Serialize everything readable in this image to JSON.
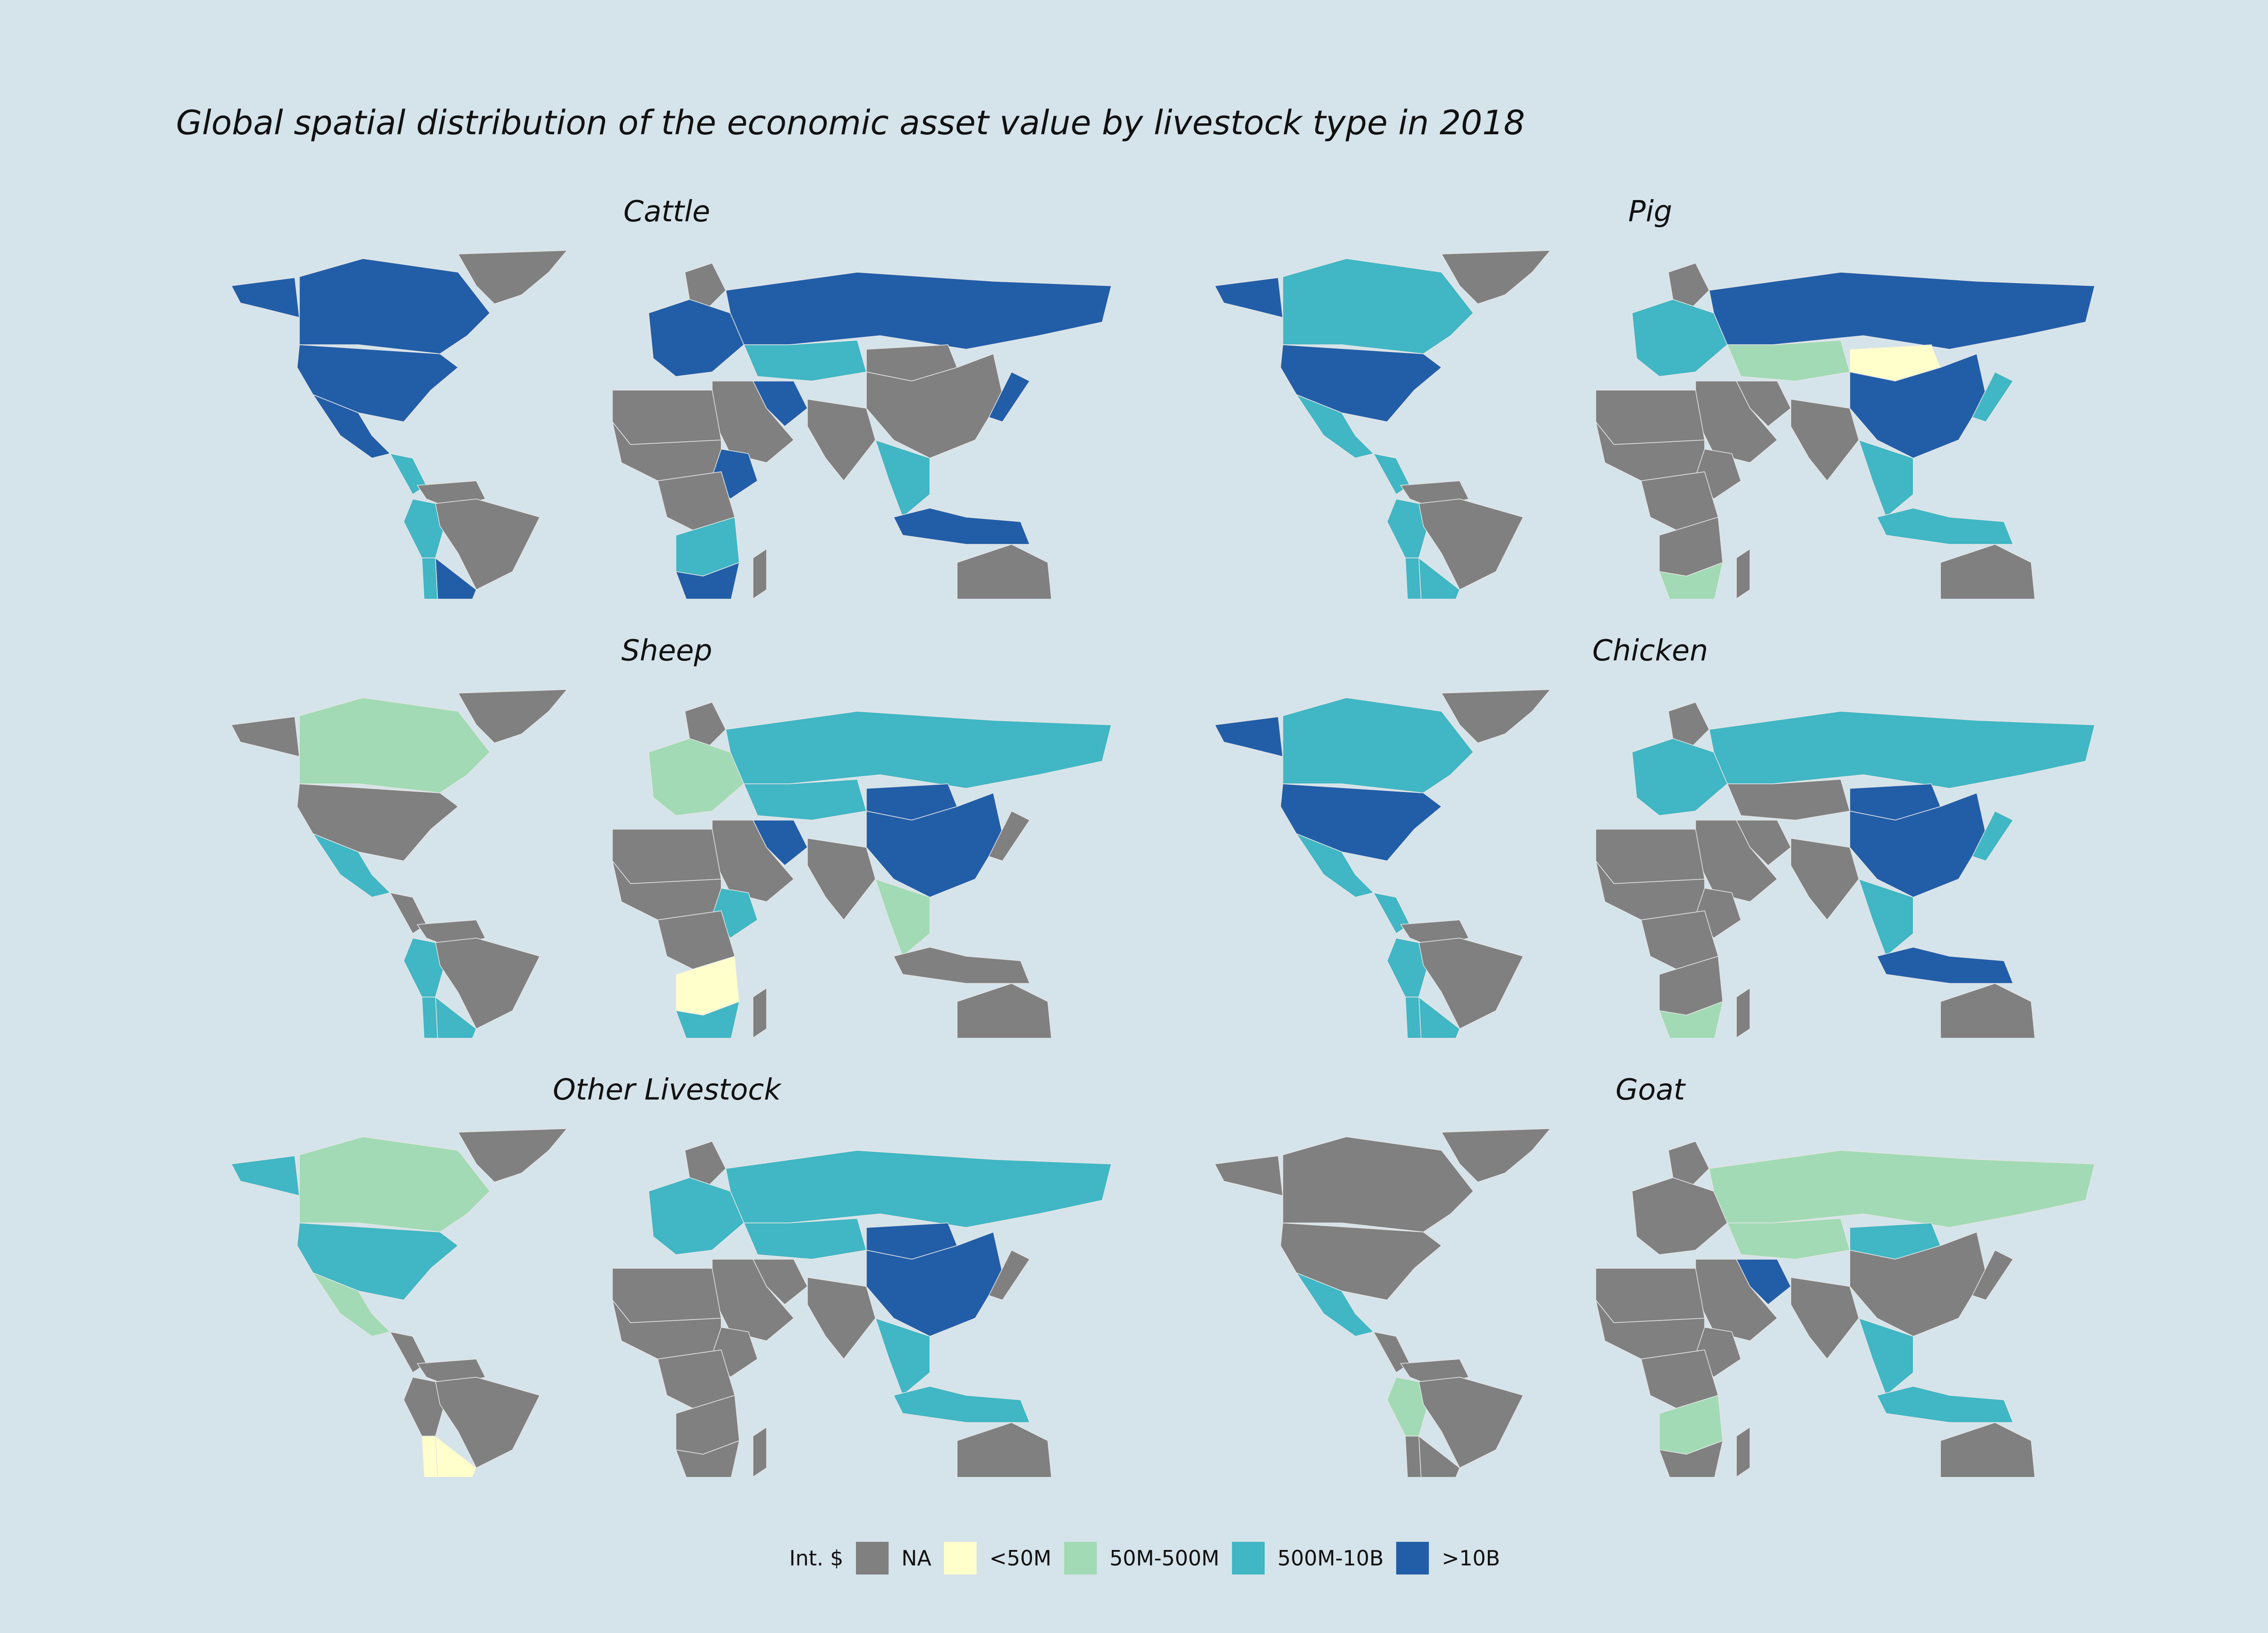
{
  "title": "Global spatial distribution of the economic asset value by livestock type in 2018",
  "legend": {
    "title": "Int. $",
    "items": [
      {
        "label": "NA",
        "color": "#808080"
      },
      {
        "label": "<50M",
        "color": "#ffffcc"
      },
      {
        "label": "50M-500M",
        "color": "#a1dab4"
      },
      {
        "label": "500M-10B",
        "color": "#41b6c4"
      },
      {
        "label": ">10B",
        "color": "#225ea8"
      }
    ]
  },
  "panels": [
    {
      "title": "Cattle",
      "regions": {
        "greenland": "NA",
        "alaska": ">10B",
        "canada": ">10B",
        "usa": ">10B",
        "mexico": ">10B",
        "central_america": "500M-10B",
        "south_america_north": "NA",
        "peru": "500M-10B",
        "brazil": "NA",
        "argentina": ">10B",
        "chile": "500M-10B",
        "europe": ">10B",
        "scandinavia": "NA",
        "russia": ">10B",
        "kazakhstan": "500M-10B",
        "north_africa": "NA",
        "sahel": "NA",
        "central_africa": "NA",
        "ethiopia": ">10B",
        "southern_africa": "500M-10B",
        "south_africa": ">10B",
        "madagascar": "NA",
        "middle_east": "NA",
        "iran": ">10B",
        "india": "NA",
        "china": "NA",
        "mongolia": "NA",
        "se_asia": "500M-10B",
        "indonesia": ">10B",
        "japan": ">10B",
        "australia": "NA",
        "new_zealand": "500M-10B"
      }
    },
    {
      "title": "Pig",
      "regions": {
        "greenland": "NA",
        "alaska": ">10B",
        "canada": "500M-10B",
        "usa": ">10B",
        "mexico": "500M-10B",
        "central_america": "500M-10B",
        "south_america_north": "NA",
        "peru": "500M-10B",
        "brazil": "NA",
        "argentina": "500M-10B",
        "chile": "500M-10B",
        "europe": "500M-10B",
        "scandinavia": "NA",
        "russia": ">10B",
        "kazakhstan": "50M-500M",
        "north_africa": "NA",
        "sahel": "NA",
        "central_africa": "NA",
        "ethiopia": "NA",
        "southern_africa": "NA",
        "south_africa": "50M-500M",
        "madagascar": "NA",
        "middle_east": "NA",
        "iran": "NA",
        "india": "NA",
        "china": ">10B",
        "mongolia": "<50M",
        "se_asia": "500M-10B",
        "indonesia": "500M-10B",
        "japan": "500M-10B",
        "australia": "NA",
        "new_zealand": "50M-500M"
      }
    },
    {
      "title": "Sheep",
      "regions": {
        "greenland": "NA",
        "alaska": "NA",
        "canada": "50M-500M",
        "usa": "NA",
        "mexico": "500M-10B",
        "central_america": "NA",
        "south_america_north": "NA",
        "peru": "500M-10B",
        "brazil": "NA",
        "argentina": "500M-10B",
        "chile": "500M-10B",
        "europe": "50M-500M",
        "scandinavia": "NA",
        "russia": "500M-10B",
        "kazakhstan": "500M-10B",
        "north_africa": "NA",
        "sahel": "NA",
        "central_africa": "NA",
        "ethiopia": "500M-10B",
        "southern_africa": "<50M",
        "south_africa": "500M-10B",
        "madagascar": "NA",
        "middle_east": "NA",
        "iran": ">10B",
        "india": "NA",
        "china": ">10B",
        "mongolia": ">10B",
        "se_asia": "50M-500M",
        "indonesia": "NA",
        "japan": "NA",
        "australia": "NA",
        "new_zealand": "500M-10B"
      }
    },
    {
      "title": "Chicken",
      "regions": {
        "greenland": "NA",
        "alaska": ">10B",
        "canada": "500M-10B",
        "usa": ">10B",
        "mexico": "500M-10B",
        "central_america": "500M-10B",
        "south_america_north": "NA",
        "peru": "500M-10B",
        "brazil": "NA",
        "argentina": "500M-10B",
        "chile": "500M-10B",
        "europe": "500M-10B",
        "scandinavia": "NA",
        "russia": "500M-10B",
        "kazakhstan": "NA",
        "north_africa": "NA",
        "sahel": "NA",
        "central_africa": "NA",
        "ethiopia": "NA",
        "southern_africa": "NA",
        "south_africa": "50M-500M",
        "madagascar": "NA",
        "middle_east": "NA",
        "iran": "NA",
        "india": "NA",
        "china": ">10B",
        "mongolia": ">10B",
        "se_asia": "500M-10B",
        "indonesia": ">10B",
        "japan": "500M-10B",
        "australia": "NA",
        "new_zealand": "50M-500M"
      }
    },
    {
      "title": "Other Livestock",
      "regions": {
        "greenland": "NA",
        "alaska": "500M-10B",
        "canada": "50M-500M",
        "usa": "500M-10B",
        "mexico": "50M-500M",
        "central_america": "NA",
        "south_america_north": "NA",
        "peru": "NA",
        "brazil": "NA",
        "argentina": "<50M",
        "chile": "<50M",
        "europe": "500M-10B",
        "scandinavia": "NA",
        "russia": "500M-10B",
        "kazakhstan": "500M-10B",
        "north_africa": "NA",
        "sahel": "NA",
        "central_africa": "NA",
        "ethiopia": "NA",
        "southern_africa": "NA",
        "south_africa": "NA",
        "madagascar": "NA",
        "middle_east": "NA",
        "iran": "NA",
        "india": "NA",
        "china": ">10B",
        "mongolia": ">10B",
        "se_asia": "500M-10B",
        "indonesia": "500M-10B",
        "japan": "NA",
        "australia": "NA",
        "new_zealand": "NA"
      }
    },
    {
      "title": "Goat",
      "regions": {
        "greenland": "NA",
        "alaska": "NA",
        "canada": "NA",
        "usa": "NA",
        "mexico": "500M-10B",
        "central_america": "NA",
        "south_america_north": "NA",
        "peru": "50M-500M",
        "brazil": "NA",
        "argentina": "NA",
        "chile": "NA",
        "europe": "NA",
        "scandinavia": "NA",
        "russia": "50M-500M",
        "kazakhstan": "50M-500M",
        "north_africa": "NA",
        "sahel": "NA",
        "central_africa": "NA",
        "ethiopia": "NA",
        "southern_africa": "50M-500M",
        "south_africa": "NA",
        "madagascar": "NA",
        "middle_east": "NA",
        "iran": ">10B",
        "india": "NA",
        "china": "NA",
        "mongolia": "500M-10B",
        "se_asia": "500M-10B",
        "indonesia": "500M-10B",
        "japan": "NA",
        "australia": "NA",
        "new_zealand": "NA"
      }
    }
  ]
}
